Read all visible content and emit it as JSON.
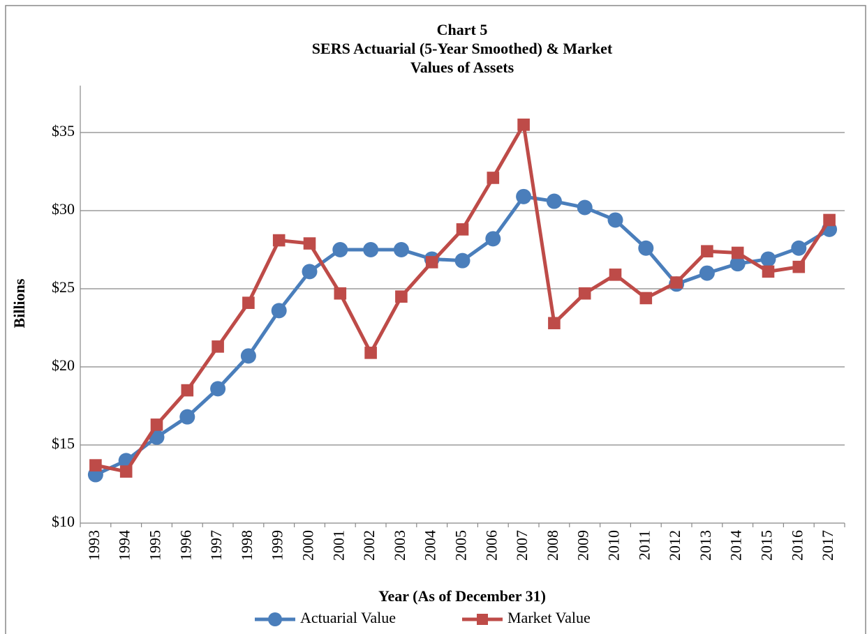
{
  "chart_data": {
    "type": "line",
    "title": [
      "Chart 5",
      "SERS Actuarial (5-Year Smoothed)  & Market",
      "Values of Assets"
    ],
    "x_label": "Year (As of December 31)",
    "y_label": "Billions",
    "categories": [
      "1993",
      "1994",
      "1995",
      "1996",
      "1997",
      "1998",
      "1999",
      "2000",
      "2001",
      "2002",
      "2003",
      "2004",
      "2005",
      "2006",
      "2007",
      "2008",
      "2009",
      "2010",
      "2011",
      "2012",
      "2013",
      "2014",
      "2015",
      "2016",
      "2017"
    ],
    "series": [
      {
        "name": "Actuarial Value",
        "color": "#4a7ebb",
        "marker": "circle",
        "values": [
          13.1,
          14.0,
          15.5,
          16.8,
          18.6,
          20.7,
          23.6,
          26.1,
          27.5,
          27.5,
          27.5,
          26.9,
          26.8,
          28.2,
          30.9,
          30.6,
          30.2,
          29.4,
          27.6,
          25.3,
          26.0,
          26.6,
          26.9,
          27.6,
          28.8
        ]
      },
      {
        "name": "Market Value",
        "color": "#be4b48",
        "marker": "square",
        "values": [
          13.7,
          13.3,
          16.3,
          18.5,
          21.3,
          24.1,
          28.1,
          27.9,
          24.7,
          20.9,
          24.5,
          26.7,
          28.8,
          32.1,
          35.5,
          22.8,
          24.7,
          25.9,
          24.4,
          25.4,
          27.4,
          27.3,
          26.1,
          26.4,
          29.4
        ]
      }
    ],
    "ylim": [
      10,
      38
    ],
    "yticks": [
      {
        "value": 10,
        "label": "$10"
      },
      {
        "value": 15,
        "label": "$15"
      },
      {
        "value": 20,
        "label": "$20"
      },
      {
        "value": 25,
        "label": "$25"
      },
      {
        "value": 30,
        "label": "$30"
      },
      {
        "value": 35,
        "label": "$35"
      }
    ],
    "grid": true,
    "legend": "bottom"
  }
}
